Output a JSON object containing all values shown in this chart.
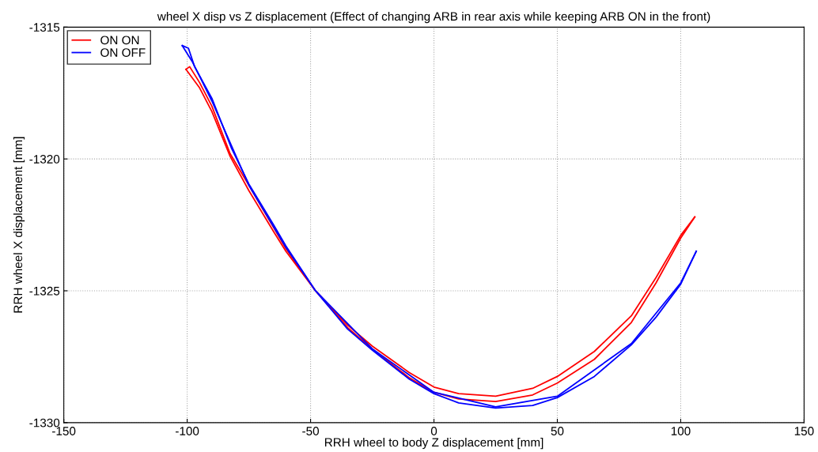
{
  "chart_data": {
    "type": "line",
    "title": "wheel X disp vs Z displacement (Effect of changing ARB in rear axis while keeping ARB ON in the front)",
    "xlabel": "RRH wheel to body Z displacement [mm]",
    "ylabel": "RRH wheel X displacement [mm]",
    "xlim": [
      -150,
      150
    ],
    "xticks": [
      -150,
      -100,
      -50,
      0,
      50,
      100,
      150
    ],
    "ylim": [
      -1330,
      -1315
    ],
    "yticks": [
      -1330,
      -1325,
      -1320,
      -1315
    ],
    "grid": true,
    "legend": "top left",
    "marker": "none",
    "line_style": "solid",
    "series": [
      {
        "name": "ON ON",
        "color": "#ff0000",
        "x": [
          -100.5,
          -95,
          -90,
          -82.6,
          -75,
          -65,
          -60,
          -48,
          -35,
          -25,
          -10,
          0,
          10,
          25,
          40,
          50,
          65,
          80,
          90,
          100,
          105.7
        ],
        "values": [
          -1316.6,
          -1317.3,
          -1318.2,
          -1319.9,
          -1321.2,
          -1322.75,
          -1323.5,
          -1325,
          -1326.4,
          -1327.2,
          -1328.3,
          -1328.85,
          -1329.1,
          -1329.2,
          -1328.95,
          -1328.5,
          -1327.6,
          -1326.2,
          -1324.7,
          -1323.0,
          -1322.2
        ]
      },
      {
        "color": "#ff0000",
        "x": [
          -100.5,
          -99,
          -95,
          -90,
          -82.6,
          -75,
          -65,
          -60,
          -48,
          -35,
          -25,
          -10,
          0,
          10,
          25,
          40,
          50,
          65,
          80,
          90,
          100,
          105.7
        ],
        "values": [
          -1316.6,
          -1316.5,
          -1317.1,
          -1318.0,
          -1319.8,
          -1321.0,
          -1322.6,
          -1323.4,
          -1325,
          -1326.3,
          -1327.1,
          -1328.1,
          -1328.65,
          -1328.9,
          -1329.0,
          -1328.7,
          -1328.25,
          -1327.3,
          -1325.95,
          -1324.5,
          -1322.9,
          -1322.2
        ]
      },
      {
        "name": "ON OFF",
        "color": "#0000ff",
        "x": [
          -102,
          -99.5,
          -97,
          -90,
          -82,
          -75,
          -65,
          -60,
          -48,
          -35,
          -25,
          -10,
          0,
          10,
          25,
          40,
          50,
          65,
          80,
          90,
          100,
          106.3
        ],
        "values": [
          -1315.7,
          -1315.8,
          -1316.5,
          -1317.7,
          -1319.6,
          -1320.95,
          -1322.5,
          -1323.3,
          -1325,
          -1326.45,
          -1327.25,
          -1328.35,
          -1328.9,
          -1329.25,
          -1329.45,
          -1329.35,
          -1329.05,
          -1328.25,
          -1327.05,
          -1326.0,
          -1324.75,
          -1323.5
        ]
      },
      {
        "color": "#0000ff",
        "x": [
          -102,
          -98,
          -90,
          -75,
          -60,
          -48,
          -25,
          0,
          25,
          50,
          80,
          100,
          106.3
        ],
        "values": [
          -1315.7,
          -1316.3,
          -1317.8,
          -1321.0,
          -1323.35,
          -1325,
          -1327.2,
          -1328.85,
          -1329.4,
          -1329.0,
          -1327.0,
          -1324.7,
          -1323.5
        ]
      }
    ]
  }
}
